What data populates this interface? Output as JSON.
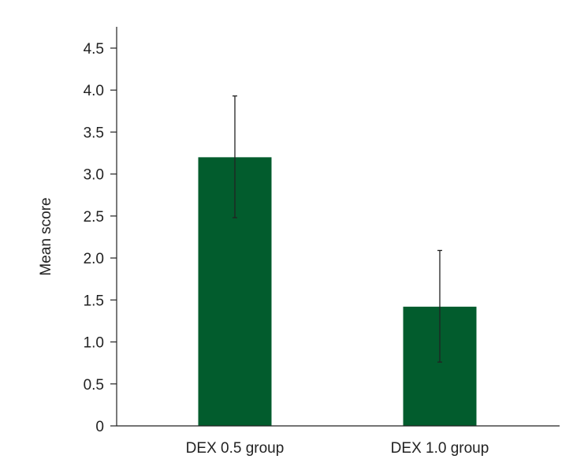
{
  "chart_data": {
    "type": "bar",
    "title": "",
    "xlabel": "",
    "ylabel": "Mean score",
    "ylim": [
      0,
      4.5
    ],
    "yticks": [
      "0",
      "0.5",
      "1.0",
      "1.5",
      "2.0",
      "2.5",
      "3.0",
      "3.5",
      "4.0",
      "4.5"
    ],
    "ytick_values": [
      0,
      0.5,
      1.0,
      1.5,
      2.0,
      2.5,
      3.0,
      3.5,
      4.0,
      4.5
    ],
    "categories": [
      "DEX 0.5 group",
      "DEX 1.0 group"
    ],
    "values": [
      3.2,
      1.42
    ],
    "error_low": [
      2.48,
      0.76
    ],
    "error_high": [
      3.93,
      2.09
    ],
    "bar_color": "#025c2d",
    "error_color": "#222222",
    "grid": false,
    "legend": "none"
  }
}
